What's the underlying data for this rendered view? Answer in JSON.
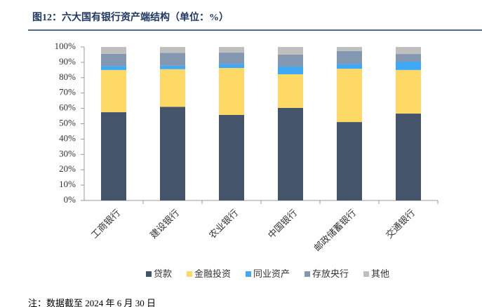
{
  "chart_data": {
    "type": "stacked_bar",
    "title": "图12：六大国有银行资产端结构（单位：%）",
    "note": "注：数据截至 2024 年 6 月 30 日",
    "categories": [
      "工商银行",
      "建设银行",
      "农业银行",
      "中国银行",
      "邮政储蓄银行",
      "交通银行"
    ],
    "series": [
      {
        "name": "贷款",
        "color": "#44546a",
        "values": [
          57.5,
          61,
          55.7,
          60.3,
          51.1,
          56.6
        ]
      },
      {
        "name": "金融投资",
        "color": "#ffd966",
        "values": [
          27.5,
          24.5,
          30.6,
          21.9,
          34.7,
          28.4
        ]
      },
      {
        "name": "同业资产",
        "color": "#3fa9f5",
        "values": [
          2.5,
          2.3,
          2.7,
          5,
          3.2,
          5.4
        ]
      },
      {
        "name": "存放央行",
        "color": "#8497b0",
        "values": [
          8,
          8.3,
          7.3,
          7.8,
          8.3,
          5
        ]
      },
      {
        "name": "其他",
        "color": "#bfbfbf",
        "values": [
          4.5,
          3.9,
          3.7,
          5,
          2.7,
          4.6
        ]
      }
    ],
    "ylim": [
      0,
      100
    ],
    "yticks": [
      {
        "value": 0,
        "label": "0%"
      },
      {
        "value": 10,
        "label": "10%"
      },
      {
        "value": 20,
        "label": "20%"
      },
      {
        "value": 30,
        "label": "30%"
      },
      {
        "value": 40,
        "label": "40%"
      },
      {
        "value": 50,
        "label": "50%"
      },
      {
        "value": 60,
        "label": "60%"
      },
      {
        "value": 70,
        "label": "70%"
      },
      {
        "value": 80,
        "label": "80%"
      },
      {
        "value": 90,
        "label": "90%"
      },
      {
        "value": 100,
        "label": "100%"
      }
    ],
    "grid": false,
    "legend": "bottom"
  }
}
